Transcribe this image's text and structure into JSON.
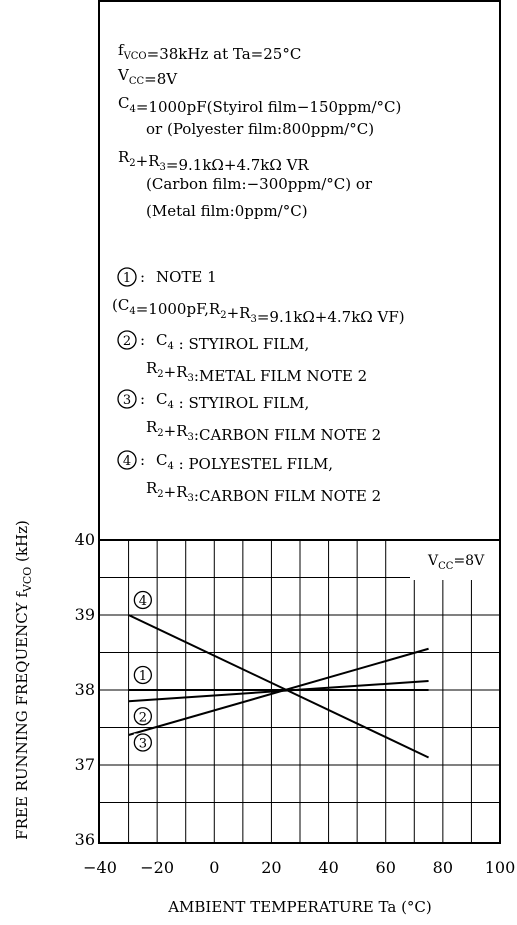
{
  "chart_data": {
    "type": "line",
    "xlabel": "AMBIENT TEMPERATURE Ta (°C)",
    "ylabel": "FREE RUNNING FREQUENCY fVCO (kHz)",
    "ylabel_parts": {
      "main": "FREE RUNNING FREQUENCY f",
      "sub": "VCO",
      "unit": " (kHz)"
    },
    "xlim": [
      -40,
      100
    ],
    "ylim": [
      36,
      40
    ],
    "x_ticks": [
      "-40",
      "-20",
      "0",
      "20",
      "40",
      "60",
      "80",
      "100"
    ],
    "y_ticks": [
      "36",
      "37",
      "38",
      "39",
      "40"
    ],
    "grid": true,
    "condition_label": {
      "main": "V",
      "sub": "CC",
      "tail": "=8V"
    },
    "series": [
      {
        "name": "1",
        "x": [
          -30,
          75
        ],
        "y": [
          37.85,
          38.12
        ],
        "label_at": [
          -25,
          38.2
        ]
      },
      {
        "name": "2",
        "x": [
          -30,
          75
        ],
        "y": [
          38.0,
          38.0
        ],
        "label_at": [
          -25,
          37.65
        ]
      },
      {
        "name": "3",
        "x": [
          -30,
          75
        ],
        "y": [
          37.4,
          38.55
        ],
        "label_at": [
          -25,
          37.3
        ]
      },
      {
        "name": "4",
        "x": [
          -30,
          75
        ],
        "y": [
          39.0,
          37.1
        ],
        "label_at": [
          -25,
          39.2
        ]
      }
    ],
    "conditions": [
      "fVCO=38kHz at Ta=25°C",
      "VCC=8V",
      "C4=1000pF(Styirol film−150ppm/°C)",
      "or (Polyester film:800ppm/°C)",
      "R2+R3=9.1kΩ+4.7kΩ VR",
      "(Carbon film:−300ppm/°C) or",
      "(Metal film:0ppm/°C)"
    ],
    "legend": [
      {
        "marker": "1",
        "lines": [
          "NOTE 1",
          "(C4=1000pF,R2+R3=9.1kΩ+4.7kΩ VF)"
        ]
      },
      {
        "marker": "2",
        "lines": [
          "C4 : STYIROL FILM,",
          "R2+R3:METAL FILM NOTE 2"
        ]
      },
      {
        "marker": "3",
        "lines": [
          "C4 : STYIROL FILM,",
          "R2+R3:CARBON FILM NOTE 2"
        ]
      },
      {
        "marker": "4",
        "lines": [
          "C4 : POLYESTEL FILM,",
          "R2+R3:CARBON FILM NOTE 2"
        ]
      }
    ]
  }
}
